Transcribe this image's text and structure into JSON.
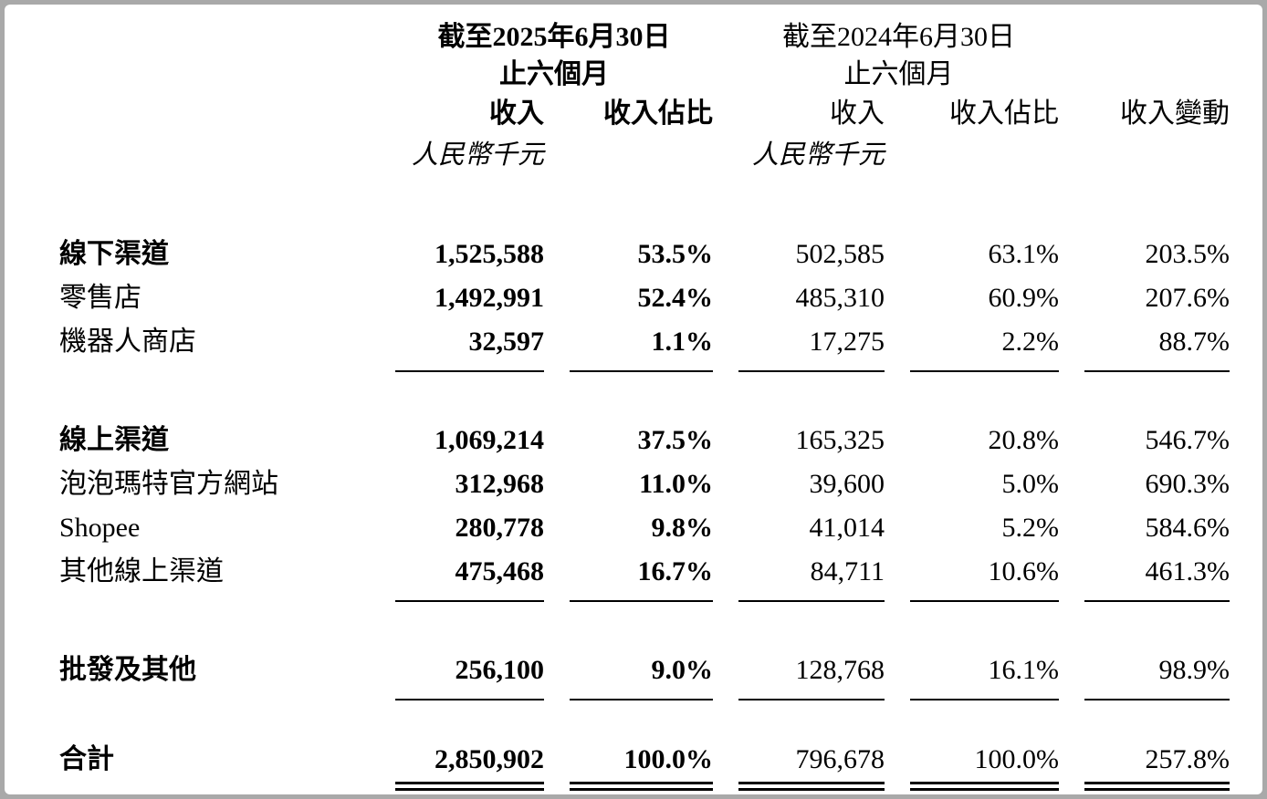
{
  "page": {
    "header": {
      "p2025_l1": "截至2025年6月30日",
      "p2025_l2": "止六個月",
      "p2024_l1": "截至2024年6月30日",
      "p2024_l2": "止六個月",
      "rev_2025": "收入",
      "share_2025": "收入佔比",
      "rev_2024": "收入",
      "share_2024": "收入佔比",
      "change": "收入變動",
      "unit_2025": "人民幣千元",
      "unit_2024": "人民幣千元"
    },
    "rows": [
      {
        "label": "線下渠道",
        "bold": true,
        "v1": "1,525,588",
        "p1": "53.5%",
        "v2": "502,585",
        "p2": "63.1%",
        "chg": "203.5%"
      },
      {
        "label": "零售店",
        "bold": false,
        "v1": "1,492,991",
        "p1": "52.4%",
        "v2": "485,310",
        "p2": "60.9%",
        "chg": "207.6%"
      },
      {
        "label": "機器人商店",
        "bold": false,
        "v1": "32,597",
        "p1": "1.1%",
        "v2": "17,275",
        "p2": "2.2%",
        "chg": "88.7%",
        "rule_after": true,
        "gap_after": true
      },
      {
        "label": "線上渠道",
        "bold": true,
        "v1": "1,069,214",
        "p1": "37.5%",
        "v2": "165,325",
        "p2": "20.8%",
        "chg": "546.7%"
      },
      {
        "label": "泡泡瑪特官方網站",
        "bold": false,
        "v1": "312,968",
        "p1": "11.0%",
        "v2": "39,600",
        "p2": "5.0%",
        "chg": "690.3%"
      },
      {
        "label": "Shopee",
        "bold": false,
        "v1": "280,778",
        "p1": "9.8%",
        "v2": "41,014",
        "p2": "5.2%",
        "chg": "584.6%"
      },
      {
        "label": "其他線上渠道",
        "bold": false,
        "v1": "475,468",
        "p1": "16.7%",
        "v2": "84,711",
        "p2": "10.6%",
        "chg": "461.3%",
        "rule_after": true,
        "gap_after": true
      },
      {
        "label": "批發及其他",
        "bold": true,
        "v1": "256,100",
        "p1": "9.0%",
        "v2": "128,768",
        "p2": "16.1%",
        "chg": "98.9%",
        "rule_after": true,
        "gap_after": true,
        "small_gap": true
      },
      {
        "label": "合計",
        "bold": true,
        "v1": "2,850,902",
        "p1": "100.0%",
        "v2": "796,678",
        "p2": "100.0%",
        "chg": "257.8%",
        "double_rule_after": true
      }
    ]
  }
}
